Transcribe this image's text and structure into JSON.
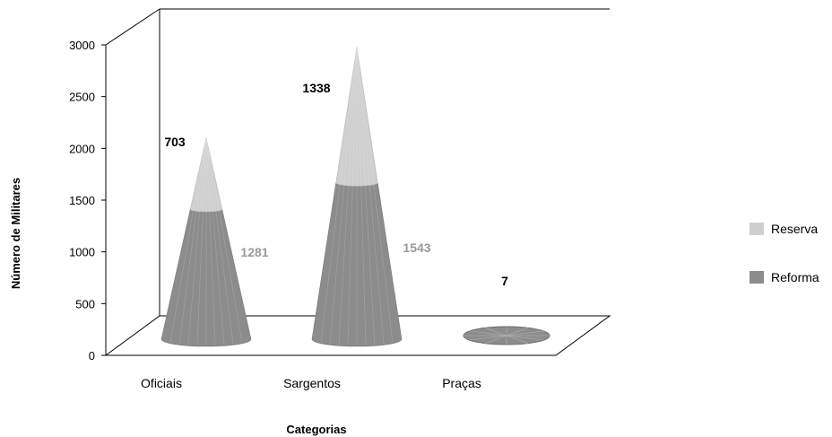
{
  "chart_data": {
    "type": "bar",
    "style": "3d-cone-stacked",
    "title": "",
    "xlabel": "Categorias",
    "ylabel": "Número de Militares",
    "categories": [
      "Oficiais",
      "Sargentos",
      "Praças"
    ],
    "series": [
      {
        "name": "Reforma",
        "values": [
          1281,
          1543,
          0
        ],
        "color": "#8c8c8c"
      },
      {
        "name": "Reserva",
        "values": [
          703,
          1338,
          7
        ],
        "color": "#cfcfcf"
      }
    ],
    "data_labels": {
      "Reserva": [
        "703",
        "1338",
        "7"
      ],
      "Reforma": [
        "1281",
        "1543",
        ""
      ]
    },
    "yticks": [
      "0",
      "500",
      "1000",
      "1500",
      "2000",
      "2500",
      "3000"
    ],
    "ylim": [
      0,
      3000
    ],
    "legend": {
      "position": "right",
      "entries": [
        "Reserva",
        "Reforma"
      ]
    },
    "grid": false,
    "label_colors": {
      "Reserva": "#000000",
      "Reforma": "#9a9a9a"
    }
  }
}
